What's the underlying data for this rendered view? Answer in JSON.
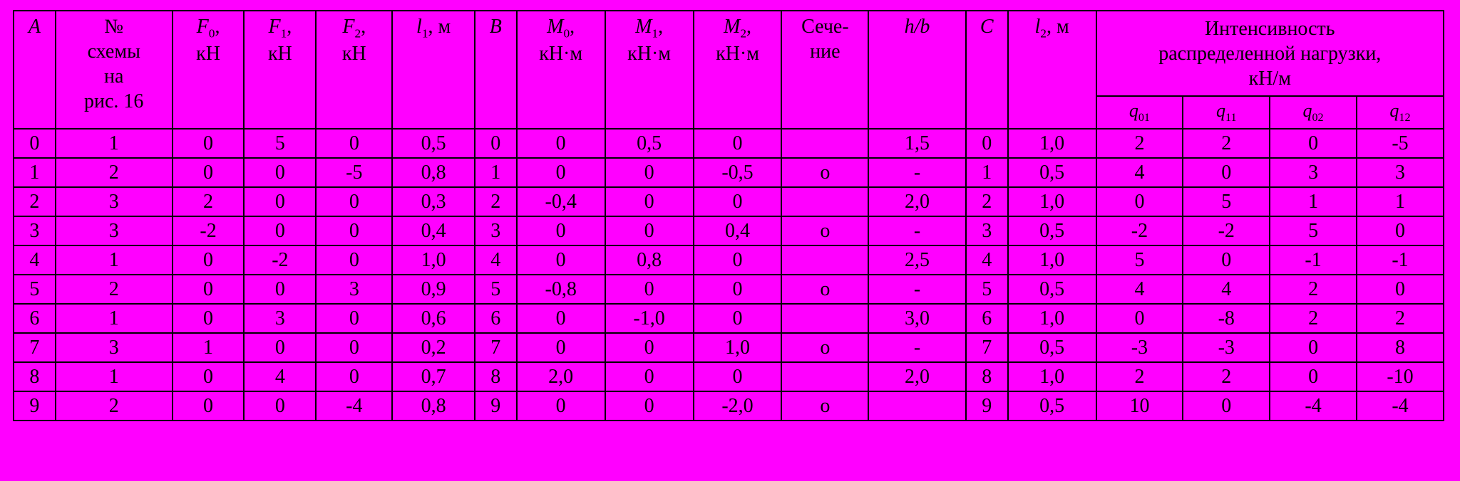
{
  "table": {
    "background_color": "#ff00ff",
    "border_color": "#000000",
    "text_color": "#000000",
    "font_family": "Times New Roman",
    "header": {
      "A": "А",
      "scheme_lines": [
        "№",
        "схемы",
        "на",
        "рис. 16"
      ],
      "F0_var": "F",
      "F0_sub": "0",
      "F0_unit": "кН",
      "F1_var": "F",
      "F1_sub": "1",
      "F1_unit": "кН",
      "F2_var": "F",
      "F2_sub": "2",
      "F2_unit": "кН",
      "l1_var": "l",
      "l1_sub": "1",
      "l1_unit": ", м",
      "B": "В",
      "M0_var": "M",
      "M0_sub": "0",
      "M0_unit": "кН·м",
      "M1_var": "M",
      "M1_sub": "1",
      "M1_unit": "кН·м",
      "M2_var": "M",
      "M2_sub": "2",
      "M2_unit": "кН·м",
      "section_l1": "Сече-",
      "section_l2": "ние",
      "hb": "h/b",
      "C": "С",
      "l2_var": "l",
      "l2_sub": "2",
      "l2_unit": ", м",
      "group_l1": "Интенсивность",
      "group_l2": "распределенной  нагрузки,",
      "group_l3": "кН/м",
      "q01_var": "q",
      "q01_sub": "01",
      "q11_var": "q",
      "q11_sub": "11",
      "q02_var": "q",
      "q02_sub": "02",
      "q12_var": "q",
      "q12_sub": "12"
    },
    "rows": [
      {
        "A": "0",
        "sch": "1",
        "F0": "0",
        "F1": "5",
        "F2": "0",
        "l1": "0,5",
        "B": "0",
        "M0": "0",
        "M1": "0,5",
        "M2": "0",
        "sec": "",
        "hb": "1,5",
        "C": "0",
        "l2": "1,0",
        "q01": "2",
        "q11": "2",
        "q02": "0",
        "q12": "-5"
      },
      {
        "A": "1",
        "sch": "2",
        "F0": "0",
        "F1": "0",
        "F2": "-5",
        "l1": "0,8",
        "B": "1",
        "M0": "0",
        "M1": "0",
        "M2": "-0,5",
        "sec": "о",
        "hb": "-",
        "C": "1",
        "l2": "0,5",
        "q01": "4",
        "q11": "0",
        "q02": "3",
        "q12": "3"
      },
      {
        "A": "2",
        "sch": "3",
        "F0": "2",
        "F1": "0",
        "F2": "0",
        "l1": "0,3",
        "B": "2",
        "M0": "-0,4",
        "M1": "0",
        "M2": "0",
        "sec": "",
        "hb": "2,0",
        "C": "2",
        "l2": "1,0",
        "q01": "0",
        "q11": "5",
        "q02": "1",
        "q12": "1"
      },
      {
        "A": "3",
        "sch": "3",
        "F0": "-2",
        "F1": "0",
        "F2": "0",
        "l1": "0,4",
        "B": "3",
        "M0": "0",
        "M1": "0",
        "M2": "0,4",
        "sec": "о",
        "hb": "-",
        "C": "3",
        "l2": "0,5",
        "q01": "-2",
        "q11": "-2",
        "q02": "5",
        "q12": "0"
      },
      {
        "A": "4",
        "sch": "1",
        "F0": "0",
        "F1": "-2",
        "F2": "0",
        "l1": "1,0",
        "B": "4",
        "M0": "0",
        "M1": "0,8",
        "M2": "0",
        "sec": "",
        "hb": "2,5",
        "C": "4",
        "l2": "1,0",
        "q01": "5",
        "q11": "0",
        "q02": "-1",
        "q12": "-1"
      },
      {
        "A": "5",
        "sch": "2",
        "F0": "0",
        "F1": "0",
        "F2": "3",
        "l1": "0,9",
        "B": "5",
        "M0": "-0,8",
        "M1": "0",
        "M2": "0",
        "sec": "о",
        "hb": "-",
        "C": "5",
        "l2": "0,5",
        "q01": "4",
        "q11": "4",
        "q02": "2",
        "q12": "0"
      },
      {
        "A": "6",
        "sch": "1",
        "F0": "0",
        "F1": "3",
        "F2": "0",
        "l1": "0,6",
        "B": "6",
        "M0": "0",
        "M1": "-1,0",
        "M2": "0",
        "sec": "",
        "hb": "3,0",
        "C": "6",
        "l2": "1,0",
        "q01": "0",
        "q11": "-8",
        "q02": "2",
        "q12": "2"
      },
      {
        "A": "7",
        "sch": "3",
        "F0": "1",
        "F1": "0",
        "F2": "0",
        "l1": "0,2",
        "B": "7",
        "M0": "0",
        "M1": "0",
        "M2": "1,0",
        "sec": "о",
        "hb": "-",
        "C": "7",
        "l2": "0,5",
        "q01": "-3",
        "q11": "-3",
        "q02": "0",
        "q12": "8"
      },
      {
        "A": "8",
        "sch": "1",
        "F0": "0",
        "F1": "4",
        "F2": "0",
        "l1": "0,7",
        "B": "8",
        "M0": "2,0",
        "M1": "0",
        "M2": "0",
        "sec": "",
        "hb": "2,0",
        "C": "8",
        "l2": "1,0",
        "q01": "2",
        "q11": "2",
        "q02": "0",
        "q12": "-10"
      },
      {
        "A": "9",
        "sch": "2",
        "F0": "0",
        "F1": "0",
        "F2": "-4",
        "l1": "0,8",
        "B": "9",
        "M0": "0",
        "M1": "0",
        "M2": "-2,0",
        "sec": "о",
        "hb": "",
        "C": "9",
        "l2": "0,5",
        "q01": "10",
        "q11": "0",
        "q02": "-4",
        "q12": "-4"
      }
    ]
  }
}
